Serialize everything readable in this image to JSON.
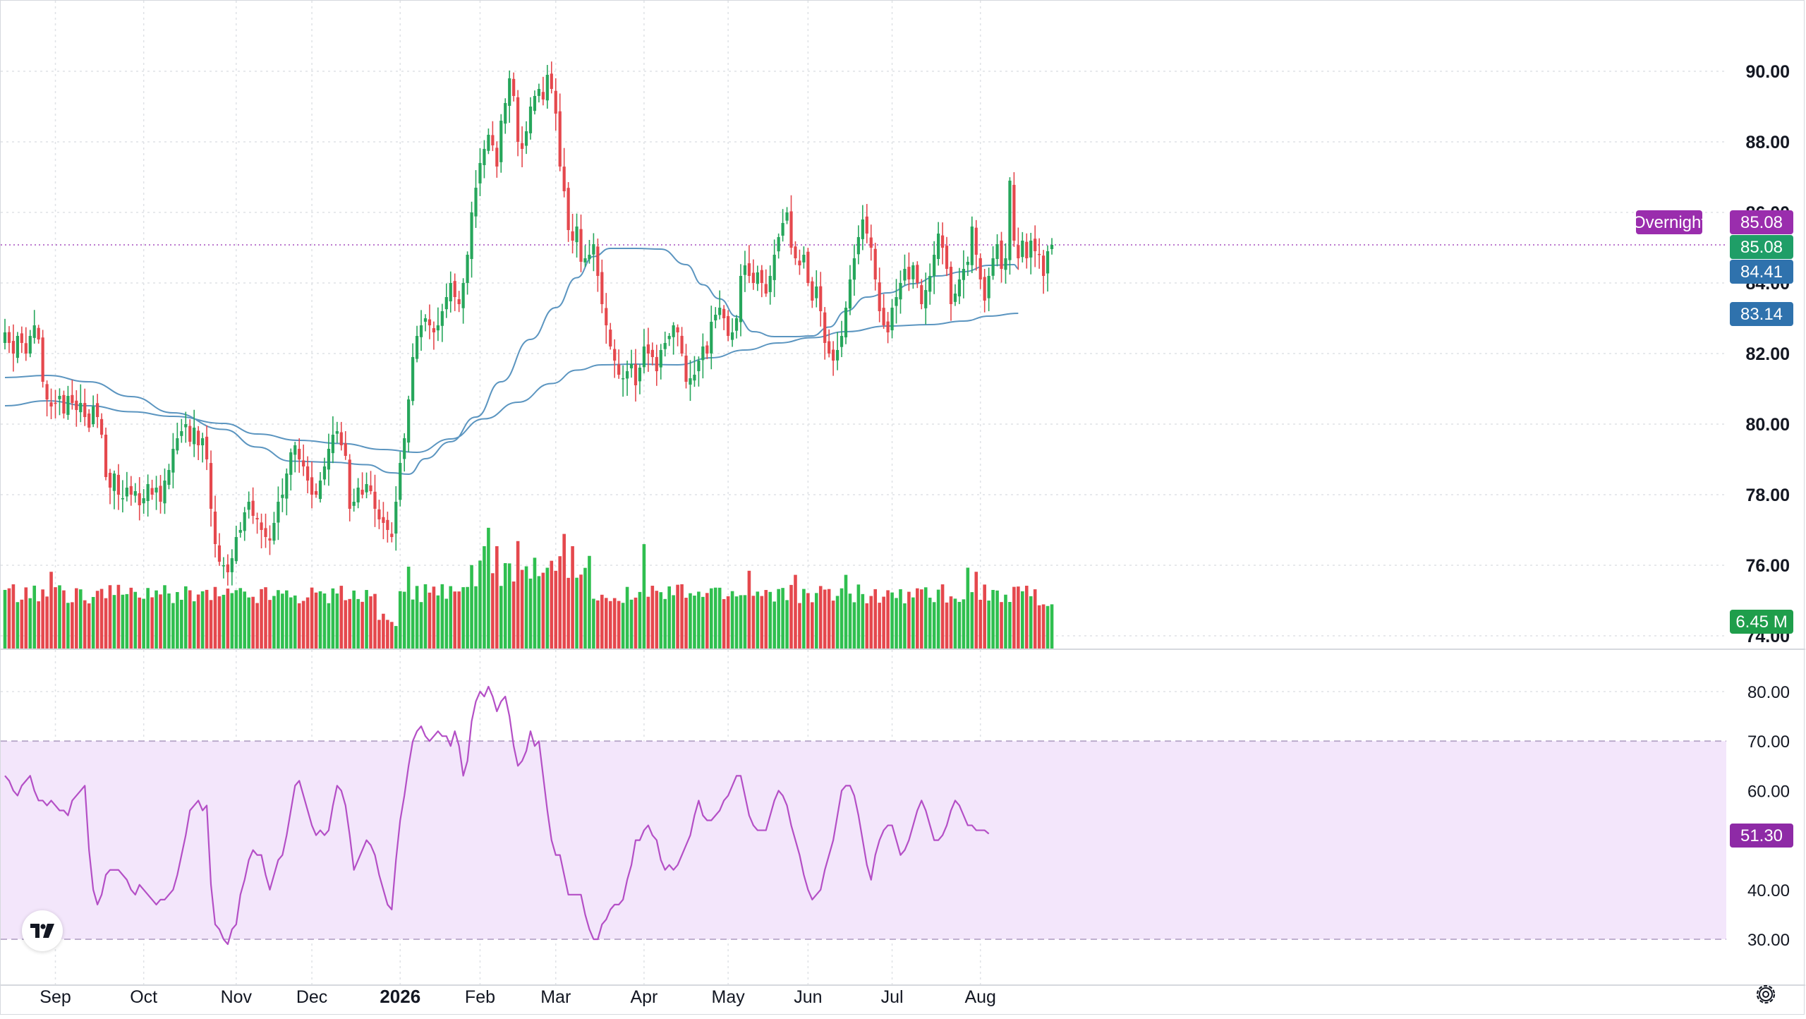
{
  "chart_data": {
    "type": "candlestick",
    "price_axis": {
      "range": [
        73.6,
        90.6
      ],
      "ticks": [
        "90.00",
        "88.00",
        "86.00",
        "84.00",
        "82.00",
        "80.00",
        "78.00",
        "76.00",
        "74.00"
      ]
    },
    "rsi_axis": {
      "range": [
        28,
        84
      ],
      "ticks": [
        "80.00",
        "70.00",
        "60.00",
        "50.00",
        "40.00",
        "30.00"
      ],
      "band": [
        30,
        70
      ]
    },
    "x_axis": {
      "labels": [
        {
          "text": "Sep",
          "idx": 12,
          "bold": false
        },
        {
          "text": "Oct",
          "idx": 33,
          "bold": false
        },
        {
          "text": "Nov",
          "idx": 55,
          "bold": false
        },
        {
          "text": "Dec",
          "idx": 73,
          "bold": false
        },
        {
          "text": "2026",
          "idx": 94,
          "bold": true
        },
        {
          "text": "Feb",
          "idx": 113,
          "bold": false
        },
        {
          "text": "Mar",
          "idx": 131,
          "bold": false
        },
        {
          "text": "Apr",
          "idx": 152,
          "bold": false
        },
        {
          "text": "May",
          "idx": 172,
          "bold": false
        },
        {
          "text": "Jun",
          "idx": 191,
          "bold": false
        },
        {
          "text": "Jul",
          "idx": 211,
          "bold": false
        },
        {
          "text": "Aug",
          "idx": 232,
          "bold": false
        }
      ]
    },
    "closes": [
      82.6,
      82.3,
      82.0,
      82.5,
      82.3,
      82.0,
      82.5,
      82.8,
      82.4,
      81.2,
      80.7,
      80.5,
      80.6,
      80.8,
      80.3,
      80.8,
      80.6,
      80.4,
      80.6,
      80.2,
      79.9,
      80.5,
      80.2,
      79.7,
      78.5,
      78.2,
      78.6,
      78.0,
      77.9,
      78.2,
      78.0,
      78.1,
      77.7,
      77.9,
      78.3,
      78.0,
      78.2,
      77.8,
      78.4,
      78.7,
      79.3,
      79.6,
      79.8,
      80.0,
      79.5,
      79.9,
      79.4,
      79.6,
      79.0,
      77.6,
      76.6,
      76.1,
      76.0,
      75.8,
      76.2,
      76.8,
      77.0,
      77.5,
      77.8,
      77.4,
      77.3,
      77.0,
      76.8,
      76.7,
      77.2,
      77.8,
      78.0,
      78.6,
      79.2,
      79.4,
      79.0,
      78.8,
      78.4,
      78.0,
      78.0,
      78.4,
      78.8,
      79.3,
      79.7,
      79.8,
      79.4,
      79.1,
      77.6,
      77.8,
      78.2,
      78.0,
      78.3,
      78.1,
      77.6,
      77.3,
      77.2,
      77.0,
      76.8,
      77.8,
      78.9,
      79.6,
      80.7,
      81.9,
      82.5,
      82.8,
      83.0,
      82.8,
      82.6,
      82.8,
      83.2,
      83.6,
      84.0,
      83.6,
      83.4,
      84.0,
      84.8,
      86.0,
      86.7,
      87.4,
      87.8,
      88.2,
      87.9,
      87.3,
      88.6,
      89.1,
      89.8,
      89.3,
      88.0,
      87.8,
      88.3,
      89.0,
      89.3,
      89.5,
      89.2,
      89.9,
      89.5,
      88.8,
      87.3,
      86.6,
      85.5,
      85.2,
      85.6,
      84.6,
      84.7,
      84.8,
      85.1,
      84.2,
      83.4,
      82.8,
      82.2,
      81.8,
      81.4,
      81.3,
      81.5,
      81.7,
      81.1,
      81.6,
      82.2,
      82.0,
      81.9,
      81.5,
      82.1,
      82.3,
      82.5,
      82.8,
      82.6,
      82.0,
      81.2,
      81.3,
      81.4,
      81.8,
      82.2,
      82.0,
      82.9,
      83.1,
      83.3,
      83.0,
      82.5,
      82.6,
      83.0,
      84.2,
      84.5,
      84.2,
      84.0,
      84.3,
      84.0,
      83.7,
      84.2,
      84.8,
      85.3,
      85.7,
      86.0,
      85.0,
      84.7,
      84.5,
      84.8,
      84.0,
      83.5,
      83.9,
      83.2,
      82.3,
      82.0,
      81.8,
      82.1,
      82.5,
      83.3,
      84.1,
      84.7,
      85.3,
      85.8,
      85.4,
      85.0,
      84.1,
      83.2,
      82.8,
      82.6,
      83.3,
      83.6,
      84.0,
      84.4,
      84.1,
      84.5,
      84.0,
      83.4,
      83.8,
      84.2,
      84.8,
      85.4,
      85.0,
      84.4,
      83.4,
      83.7,
      84.1,
      84.4,
      84.6,
      85.6,
      84.8,
      84.1,
      83.5,
      84.2,
      84.7,
      85.1,
      84.4,
      84.7,
      86.9,
      85.2,
      84.7,
      85.2,
      84.7,
      85.2,
      84.9,
      84.8,
      84.2,
      84.9,
      85.08
    ],
    "sma_fast": {
      "name": "",
      "color": "#5b95c0",
      "points": [
        [
          0,
          81.32
        ],
        [
          10,
          81.38
        ],
        [
          20,
          81.2
        ],
        [
          30,
          80.78
        ],
        [
          40,
          80.32
        ],
        [
          52,
          79.85
        ],
        [
          60,
          79.35
        ],
        [
          68,
          78.95
        ],
        [
          78,
          78.92
        ],
        [
          86,
          78.85
        ],
        [
          92,
          78.62
        ],
        [
          96,
          78.58
        ],
        [
          100,
          79.02
        ],
        [
          106,
          79.5
        ],
        [
          112,
          80.2
        ],
        [
          118,
          81.2
        ],
        [
          125,
          82.4
        ],
        [
          131,
          83.3
        ],
        [
          136,
          84.15
        ],
        [
          140,
          84.75
        ],
        [
          144,
          84.98
        ],
        [
          150,
          84.98
        ],
        [
          156,
          84.96
        ],
        [
          162,
          84.52
        ],
        [
          166,
          83.95
        ],
        [
          170,
          83.55
        ],
        [
          174,
          83.05
        ],
        [
          178,
          82.62
        ],
        [
          183,
          82.48
        ],
        [
          188,
          82.48
        ],
        [
          192,
          82.5
        ],
        [
          196,
          82.75
        ],
        [
          200,
          83.2
        ],
        [
          205,
          83.6
        ],
        [
          210,
          83.72
        ],
        [
          216,
          83.98
        ],
        [
          222,
          84.2
        ],
        [
          228,
          84.32
        ],
        [
          234,
          84.5
        ],
        [
          240,
          84.52
        ],
        [
          241,
          84.41
        ]
      ]
    },
    "sma_slow": {
      "name": "",
      "color": "#5b95c0",
      "points": [
        [
          0,
          80.52
        ],
        [
          10,
          80.66
        ],
        [
          20,
          80.52
        ],
        [
          30,
          80.35
        ],
        [
          40,
          80.22
        ],
        [
          52,
          80.02
        ],
        [
          60,
          79.72
        ],
        [
          70,
          79.54
        ],
        [
          80,
          79.45
        ],
        [
          90,
          79.28
        ],
        [
          98,
          79.2
        ],
        [
          106,
          79.58
        ],
        [
          114,
          80.15
        ],
        [
          122,
          80.62
        ],
        [
          130,
          81.15
        ],
        [
          136,
          81.53
        ],
        [
          142,
          81.68
        ],
        [
          150,
          81.7
        ],
        [
          160,
          81.68
        ],
        [
          168,
          81.88
        ],
        [
          176,
          82.1
        ],
        [
          184,
          82.3
        ],
        [
          192,
          82.45
        ],
        [
          200,
          82.62
        ],
        [
          210,
          82.78
        ],
        [
          220,
          82.82
        ],
        [
          228,
          82.92
        ],
        [
          234,
          83.06
        ],
        [
          241,
          83.14
        ]
      ]
    },
    "volume_seed": 137,
    "volume_big": {
      "11": 7.5,
      "96": 8.0,
      "114": 10.0,
      "115": 11.8,
      "117": 10.0,
      "122": 10.5,
      "133": 11.2,
      "135": 10.0,
      "152": 10.2,
      "177": 7.6,
      "188": 7.2,
      "200": 7.2,
      "229": 7.9,
      "231": 7.5
    },
    "volume_low": {
      "89": 2.8,
      "90": 3.4,
      "91": 2.8,
      "92": 2.6,
      "93": 2.2
    },
    "rsi": [
      63,
      62,
      60,
      59,
      61,
      62,
      63,
      60,
      58,
      58,
      57,
      58,
      57,
      56,
      56,
      55,
      58,
      59,
      60,
      61,
      48,
      40,
      37,
      39,
      43,
      44,
      44,
      44,
      43,
      42,
      40,
      39,
      41,
      40,
      39,
      38,
      37,
      38,
      38,
      39,
      40,
      43,
      47,
      51,
      56,
      57,
      58,
      56,
      57,
      41,
      33,
      32,
      30,
      29,
      32,
      33,
      39,
      42,
      46,
      48,
      47,
      47,
      43,
      40,
      43,
      46,
      47,
      51,
      56,
      61,
      62,
      59,
      56,
      53,
      51,
      52,
      51,
      52,
      57,
      61,
      60,
      57,
      51,
      44,
      46,
      48,
      50,
      49,
      47,
      43,
      40,
      37,
      36,
      46,
      54,
      59,
      65,
      70,
      72,
      73,
      71,
      70,
      71,
      72,
      71,
      71,
      69,
      72,
      69,
      63,
      66,
      74,
      78,
      80,
      79,
      81,
      79,
      76,
      78,
      79,
      75,
      69,
      65,
      66,
      68,
      72,
      69,
      70,
      63,
      56,
      50,
      47,
      47,
      43,
      39,
      39,
      39,
      39,
      35,
      32,
      30,
      30,
      33,
      34,
      36,
      37,
      37,
      38,
      42,
      45,
      50,
      50,
      52,
      53,
      51,
      50,
      46,
      44,
      45,
      44,
      45,
      47,
      49,
      51,
      55,
      58,
      55,
      54,
      54,
      55,
      56,
      58,
      59,
      61,
      63,
      63,
      59,
      55,
      53,
      52,
      52,
      52,
      55,
      58,
      60,
      59,
      57,
      53,
      50,
      47,
      43,
      40,
      38,
      39,
      40,
      44,
      47,
      50,
      55,
      60,
      61,
      61,
      59,
      55,
      50,
      45,
      42,
      47,
      50,
      52,
      53,
      53,
      50,
      47,
      48,
      50,
      53,
      56,
      58,
      56,
      53,
      50,
      50,
      51,
      53,
      56,
      58,
      57,
      55,
      53,
      53,
      52,
      52,
      52,
      51.3
    ],
    "overlays": {
      "dotted_price": 85.08,
      "rsi_label_value": 51.3,
      "volume_label_value": 6.45
    }
  },
  "labels": {
    "overnight_tag": "Overnight",
    "overnight_value": "85.08",
    "last_price": "85.08",
    "sma_fast_value": "84.41",
    "sma_slow_value": "83.14",
    "volume_value": "6.45 M",
    "rsi_value": "51.30"
  },
  "colors": {
    "up": "#26a65b",
    "down": "#e5484d",
    "volume_up": "#2fbf4f",
    "volume_down": "#e5484d",
    "sma": "#5b95c0",
    "sma_tag": "#2f72ad",
    "overnight": "#9a2dad",
    "rsi_line": "#b44fc6",
    "rsi_band": "#f3e6fb",
    "rsi_tag": "#8e2aa6",
    "last_tag": "#1f9e67",
    "grid": "#dfe2e6"
  }
}
